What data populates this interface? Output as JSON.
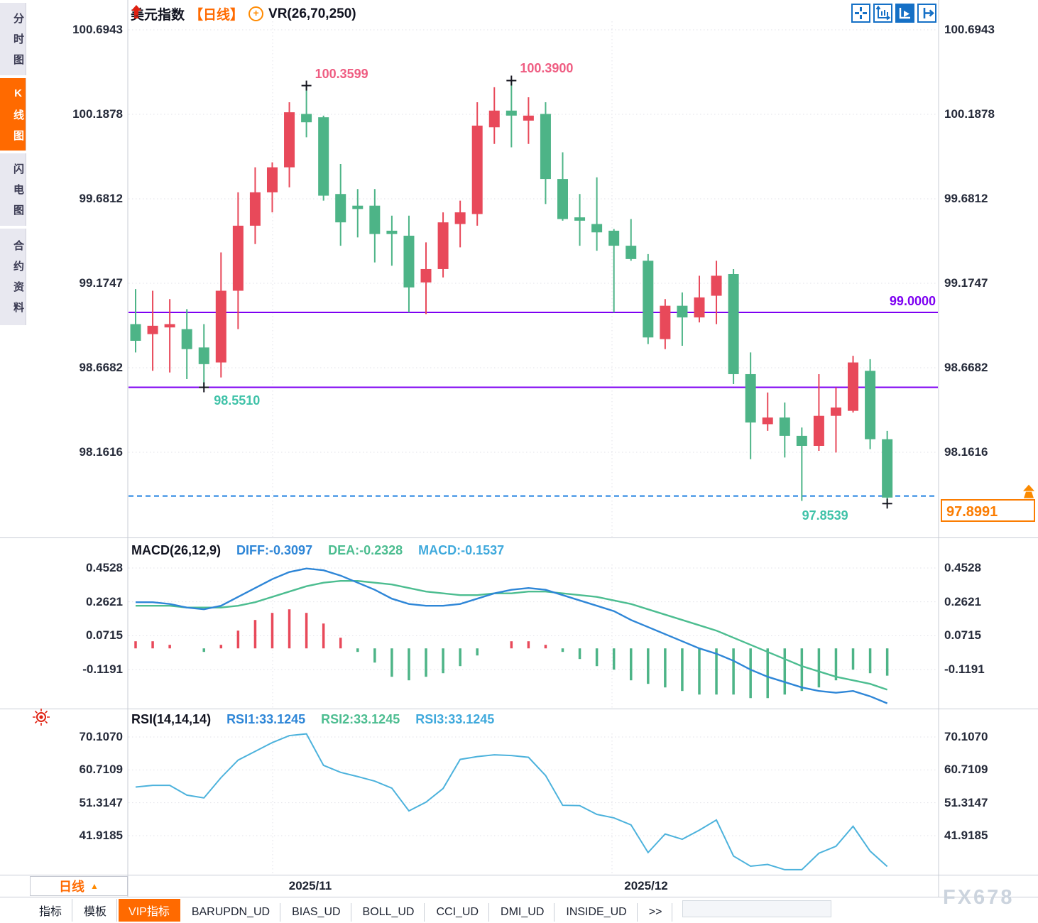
{
  "sidebar": {
    "items": [
      {
        "label": "分时图",
        "active": false
      },
      {
        "label": "K线图",
        "active": true
      },
      {
        "label": "闪电图",
        "active": false
      },
      {
        "label": "合约资料",
        "active": false
      }
    ]
  },
  "header": {
    "symbol": "美元指数",
    "period_tag": "【日线】",
    "plus_glyph": "+",
    "overlay": "VR(26,70,250)"
  },
  "toolbar": {
    "icons": [
      "crosshair",
      "axis-scale",
      "axis-play-active",
      "exit-right"
    ]
  },
  "macd_panel": {
    "title": "MACD(26,12,9)",
    "diff_label": "DIFF:-0.3097",
    "dea_label": "DEA:-0.2328",
    "macd_label": "MACD:-0.1537"
  },
  "rsi_panel": {
    "title": "RSI(14,14,14)",
    "rsi1_label": "RSI1:33.1245",
    "rsi2_label": "RSI2:33.1245",
    "rsi3_label": "RSI3:33.1245"
  },
  "bottom": {
    "period_button": "日线",
    "period_arrow": "▲",
    "x_labels": [
      {
        "label": "2025/11",
        "x": 437,
        "grid_x": 384
      },
      {
        "label": "2025/12",
        "x": 910,
        "grid_x": 862
      }
    ],
    "tabs": [
      {
        "label": "指标",
        "active": false
      },
      {
        "label": "模板",
        "active": false
      },
      {
        "label": "VIP指标",
        "active": true
      },
      {
        "label": "BARUPDN_UD",
        "active": false
      },
      {
        "label": "BIAS_UD",
        "active": false
      },
      {
        "label": "BOLL_UD",
        "active": false
      },
      {
        "label": "CCI_UD",
        "active": false
      },
      {
        "label": "DMI_UD",
        "active": false
      },
      {
        "label": "INSIDE_UD",
        "active": false
      },
      {
        "label": ">>",
        "active": false
      }
    ],
    "watermark": "FX678"
  },
  "colors": {
    "up_candle": "#e8495a",
    "down_candle": "#4db487",
    "purple_line": "#7d00f2",
    "dashed_line": "#1f80e0",
    "diff_line": "#2e86d7",
    "dea_line": "#4cbd90",
    "rsi_line": "#4cb2dc",
    "accent_orange": "#ff6a00",
    "annotation_pink": "#ef5d82",
    "annotation_teal": "#3fc2a8",
    "grid": "#e1e1e8",
    "border": "#c9cdd6"
  },
  "chart_data": {
    "type": "candlestick",
    "title": "美元指数 日线",
    "y_axis_ticks": [
      100.6943,
      100.1878,
      99.6812,
      99.1747,
      98.6682,
      98.1616
    ],
    "candles_ohlc": [
      [
        98.93,
        99.14,
        98.76,
        98.83
      ],
      [
        98.87,
        99.13,
        98.65,
        98.92
      ],
      [
        98.91,
        99.08,
        98.64,
        98.93
      ],
      [
        98.9,
        99.02,
        98.6,
        98.78
      ],
      [
        98.79,
        98.93,
        98.551,
        98.69
      ],
      [
        98.7,
        99.36,
        98.61,
        99.13
      ],
      [
        99.13,
        99.72,
        98.9,
        99.52
      ],
      [
        99.52,
        99.87,
        99.41,
        99.72
      ],
      [
        99.72,
        99.9,
        99.6,
        99.87
      ],
      [
        99.87,
        100.26,
        99.75,
        100.2
      ],
      [
        100.19,
        100.3599,
        100.05,
        100.14
      ],
      [
        100.17,
        100.18,
        99.67,
        99.7
      ],
      [
        99.71,
        99.89,
        99.4,
        99.54
      ],
      [
        99.64,
        99.74,
        99.45,
        99.62
      ],
      [
        99.64,
        99.74,
        99.3,
        99.47
      ],
      [
        99.49,
        99.58,
        99.28,
        99.47
      ],
      [
        99.46,
        99.58,
        99.0,
        99.15
      ],
      [
        99.18,
        99.42,
        98.99,
        99.26
      ],
      [
        99.26,
        99.6,
        99.21,
        99.54
      ],
      [
        99.53,
        99.67,
        99.39,
        99.6
      ],
      [
        99.59,
        100.26,
        99.52,
        100.12
      ],
      [
        100.11,
        100.35,
        100.01,
        100.21
      ],
      [
        100.21,
        100.39,
        99.99,
        100.18
      ],
      [
        100.15,
        100.29,
        100.01,
        100.18
      ],
      [
        100.19,
        100.26,
        99.65,
        99.8
      ],
      [
        99.8,
        99.96,
        99.55,
        99.56
      ],
      [
        99.57,
        99.71,
        99.4,
        99.55
      ],
      [
        99.53,
        99.81,
        99.37,
        99.48
      ],
      [
        99.49,
        99.5,
        99.0,
        99.4
      ],
      [
        99.4,
        99.56,
        99.31,
        99.32
      ],
      [
        99.31,
        99.35,
        98.81,
        98.85
      ],
      [
        98.84,
        99.08,
        98.78,
        99.04
      ],
      [
        99.04,
        99.12,
        98.8,
        98.97
      ],
      [
        98.97,
        99.22,
        98.94,
        99.09
      ],
      [
        99.1,
        99.31,
        98.93,
        99.22
      ],
      [
        99.23,
        99.26,
        98.57,
        98.63
      ],
      [
        98.63,
        98.76,
        98.12,
        98.34
      ],
      [
        98.33,
        98.52,
        98.29,
        98.37
      ],
      [
        98.37,
        98.46,
        98.13,
        98.26
      ],
      [
        98.26,
        98.31,
        97.87,
        98.2
      ],
      [
        98.2,
        98.63,
        98.17,
        98.38
      ],
      [
        98.38,
        98.55,
        98.16,
        98.43
      ],
      [
        98.41,
        98.74,
        98.4,
        98.7
      ],
      [
        98.65,
        98.72,
        98.18,
        98.24
      ],
      [
        98.24,
        98.29,
        97.8539,
        97.89
      ]
    ],
    "horizontal_lines": [
      {
        "price": 99.0,
        "label": "99.0000"
      },
      {
        "price": 98.551,
        "label": ""
      }
    ],
    "current_price": 97.8991,
    "current_price_text": "97.8991",
    "annotations": [
      {
        "text": "100.3599",
        "candle": 10,
        "price": 100.3599,
        "placement": "above-right",
        "style": "pink"
      },
      {
        "text": "100.3900",
        "candle": 22,
        "price": 100.39,
        "placement": "above-right",
        "style": "pink"
      },
      {
        "text": "98.5510",
        "candle": 4,
        "price": 98.551,
        "placement": "below-right",
        "style": "teal"
      },
      {
        "text": "97.8539",
        "candle": 44,
        "price": 97.8539,
        "placement": "below-left",
        "style": "teal"
      }
    ],
    "macd": {
      "y_ticks": [
        0.4528,
        0.2621,
        0.0715,
        -0.1191
      ],
      "diff": [
        0.26,
        0.26,
        0.25,
        0.23,
        0.22,
        0.24,
        0.29,
        0.34,
        0.39,
        0.43,
        0.45,
        0.44,
        0.41,
        0.37,
        0.33,
        0.28,
        0.25,
        0.24,
        0.24,
        0.25,
        0.28,
        0.31,
        0.33,
        0.34,
        0.33,
        0.3,
        0.27,
        0.24,
        0.21,
        0.16,
        0.12,
        0.08,
        0.04,
        0.0,
        -0.03,
        -0.07,
        -0.12,
        -0.16,
        -0.19,
        -0.22,
        -0.24,
        -0.25,
        -0.24,
        -0.27,
        -0.3097
      ],
      "dea": [
        0.24,
        0.24,
        0.24,
        0.23,
        0.23,
        0.23,
        0.24,
        0.26,
        0.29,
        0.32,
        0.35,
        0.37,
        0.38,
        0.38,
        0.37,
        0.36,
        0.34,
        0.32,
        0.31,
        0.3,
        0.3,
        0.31,
        0.31,
        0.32,
        0.32,
        0.31,
        0.3,
        0.29,
        0.27,
        0.25,
        0.22,
        0.19,
        0.16,
        0.13,
        0.1,
        0.06,
        0.02,
        -0.02,
        -0.06,
        -0.1,
        -0.13,
        -0.16,
        -0.18,
        -0.2,
        -0.2328
      ]
    },
    "rsi": {
      "y_ticks": [
        70.107,
        60.7109,
        51.3147,
        41.9185
      ],
      "values": [
        55.8,
        56.3,
        56.3,
        53.5,
        52.7,
        58.5,
        63.5,
        66.0,
        68.5,
        70.5,
        71.0,
        62.0,
        60.0,
        58.8,
        57.5,
        55.5,
        49.0,
        51.5,
        55.4,
        63.7,
        64.5,
        65.0,
        64.8,
        64.3,
        59.1,
        50.6,
        50.5,
        48.0,
        47.0,
        45.0,
        37.1,
        42.4,
        40.9,
        43.5,
        46.4,
        36.1,
        33.2,
        33.7,
        32.2,
        32.2,
        36.9,
        38.9,
        44.6,
        37.5,
        33.1245
      ]
    }
  }
}
